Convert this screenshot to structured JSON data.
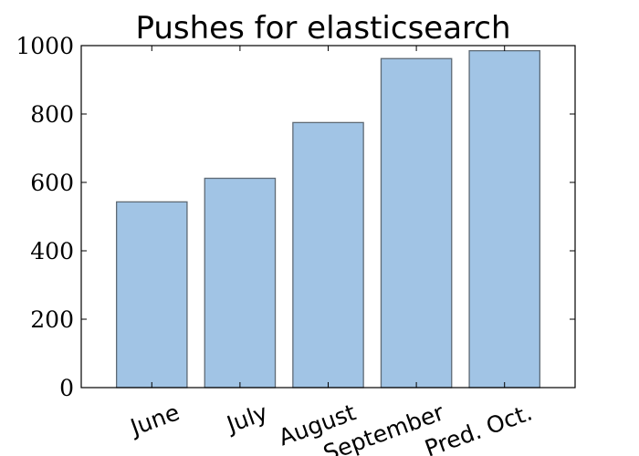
{
  "chart_data": {
    "type": "bar",
    "title": "Pushes for elasticsearch",
    "xlabel": "",
    "ylabel": "",
    "categories": [
      "June",
      "July",
      "August",
      "September",
      "Pred. Oct."
    ],
    "values": [
      543,
      612,
      775,
      962,
      985
    ],
    "ylim": [
      0,
      1000
    ],
    "yticks": [
      "0",
      "200",
      "400",
      "600",
      "800",
      "1000"
    ],
    "grid": false,
    "legend": "none",
    "colors": {
      "bar_fill": "#a1c4e5",
      "bar_edge": "#5e6a75",
      "axes": "#000000"
    }
  }
}
